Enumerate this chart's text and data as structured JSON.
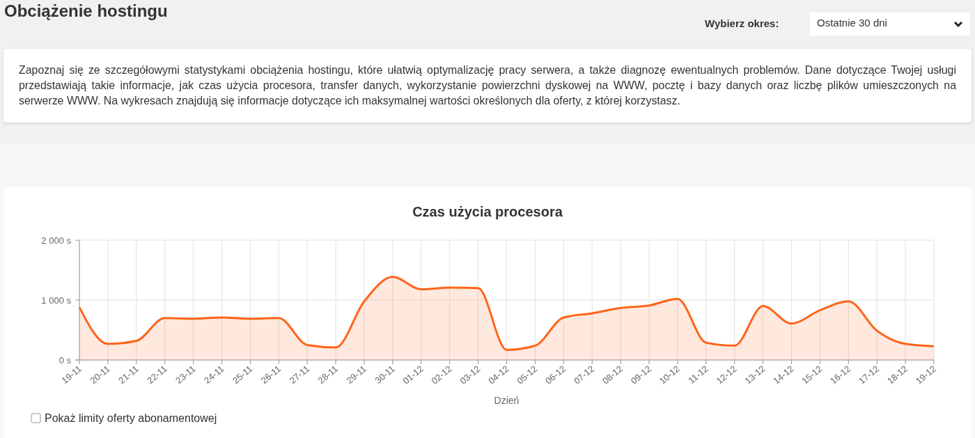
{
  "chart_data": {
    "type": "area",
    "title": "Czas użycia procesora",
    "xlabel": "Dzień",
    "annotations": [
      "Obciążenie hostingu",
      "Wybierz okres:",
      "Ostatnie 30 dni",
      "Zapoznaj się ze szczegółowymi statystykami obciążenia hostingu, które ułatwią optymalizację pracy serwera, a także diagnozę ewentualnych problemów. Dane dotyczące Twojej usługi przedstawiają takie informacje, jak czas użycia procesora, transfer danych, wykorzystanie powierzchni dyskowej na WWW, pocztę i bazy danych oraz liczbę plików umieszczonych na serwerze WWW. Na wykresach znajdują się informacje dotyczące ich maksymalnej wartości określonych dla oferty, z której korzystasz.",
      "Pokaż limity oferty abonamentowej"
    ],
    "categories": [
      "19-11",
      "20-11",
      "21-11",
      "22-11",
      "23-11",
      "24-11",
      "25-11",
      "26-11",
      "27-11",
      "28-11",
      "29-11",
      "30-11",
      "01-12",
      "02-12",
      "03-12",
      "04-12",
      "05-12",
      "06-12",
      "07-12",
      "08-12",
      "09-12",
      "10-12",
      "11-12",
      "12-12",
      "13-12",
      "14-12",
      "15-12",
      "16-12",
      "17-12",
      "18-12",
      "19-12"
    ],
    "series": [
      {
        "color": "#ff6319",
        "values": [
          880,
          270,
          320,
          700,
          690,
          710,
          690,
          700,
          250,
          210,
          980,
          1390,
          1180,
          1210,
          1200,
          170,
          240,
          710,
          780,
          870,
          910,
          1020,
          290,
          240,
          900,
          610,
          830,
          980,
          490,
          270,
          230
        ]
      }
    ],
    "ylim": [
      0,
      2000
    ],
    "yticks": [
      {
        "value": 0,
        "label": "0 s"
      },
      {
        "value": 1000,
        "label": "1 000 s"
      },
      {
        "value": 2000,
        "label": "2 000 s"
      }
    ],
    "grid": true
  }
}
